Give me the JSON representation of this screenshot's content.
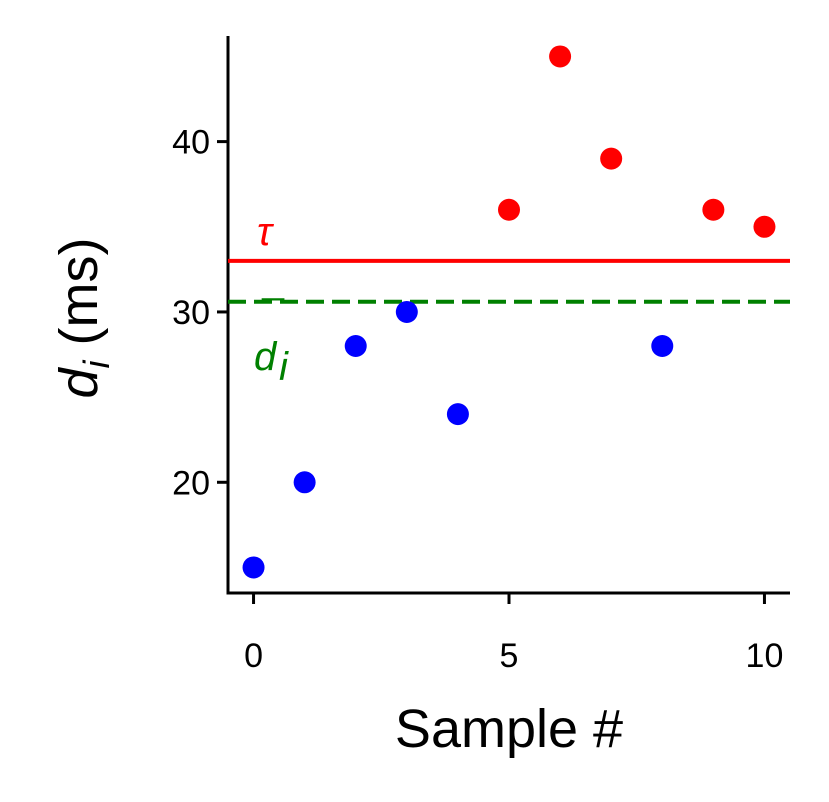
{
  "chart_data": {
    "type": "scatter",
    "xlabel": "Sample #",
    "ylabel": {
      "main": "d",
      "subscript": "i",
      "unit": " (ms)"
    },
    "xlim": [
      -0.5,
      10.5
    ],
    "ylim": [
      13.5,
      46.2
    ],
    "xticks": [
      0,
      5,
      10
    ],
    "yticks": [
      20,
      30,
      40
    ],
    "grid": false,
    "series": [
      {
        "color": "#0000ff",
        "points": [
          [
            0,
            15
          ],
          [
            1,
            20
          ],
          [
            2,
            28
          ],
          [
            3,
            30
          ],
          [
            4,
            24
          ],
          [
            8,
            28
          ]
        ]
      },
      {
        "color": "#ff0000",
        "points": [
          [
            5,
            36
          ],
          [
            6,
            45
          ],
          [
            7,
            39
          ],
          [
            9,
            36
          ],
          [
            10,
            35
          ]
        ]
      }
    ],
    "reference_lines": [
      {
        "y": 33,
        "color": "#ff0000",
        "style": "solid",
        "label": "τ"
      },
      {
        "y": 30.6,
        "color": "#008000",
        "style": "dashed",
        "label": "d",
        "label_accent": "¯",
        "label_subscript": "i"
      }
    ]
  }
}
